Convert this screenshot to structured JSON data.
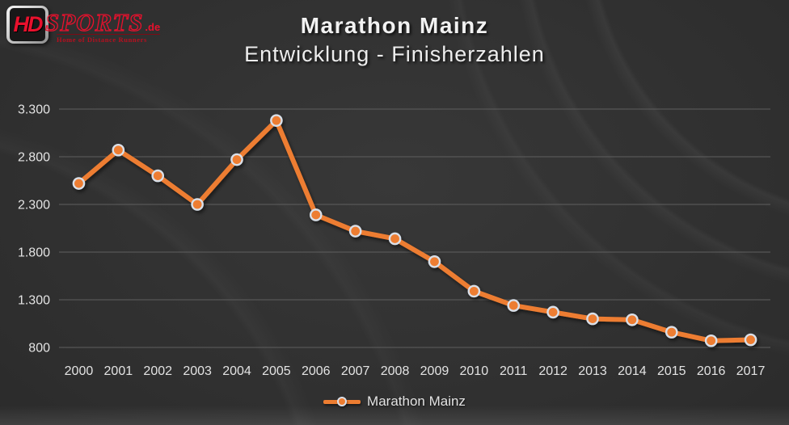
{
  "logo": {
    "hd": "HD",
    "sports": "SPORTS",
    "de": ".de",
    "tagline": "Home of Distance Runners"
  },
  "title": {
    "line1": "Marathon Mainz",
    "line2": "Entwicklung - Finisherzahlen"
  },
  "legend": {
    "label": "Marathon Mainz"
  },
  "colors": {
    "accent": "#ED7D31",
    "marker_ring": "#D9DFE8",
    "grid": "#5F5F5F",
    "axis_text": "#E3E3E3",
    "title_text": "#F2F2F2",
    "logo_red": "#E8112D",
    "background": "#2D2D2D"
  },
  "chart_data": {
    "type": "line",
    "title": "Marathon Mainz — Entwicklung - Finisherzahlen",
    "categories": [
      "2000",
      "2001",
      "2002",
      "2003",
      "2004",
      "2005",
      "2006",
      "2007",
      "2008",
      "2009",
      "2010",
      "2011",
      "2012",
      "2013",
      "2014",
      "2015",
      "2016",
      "2017"
    ],
    "series": [
      {
        "name": "Marathon Mainz",
        "values": [
          2520,
          2870,
          2600,
          2300,
          2770,
          3180,
          2190,
          2020,
          1940,
          1700,
          1390,
          1240,
          1170,
          1100,
          1090,
          960,
          870,
          880
        ]
      }
    ],
    "xlabel": "",
    "ylabel": "",
    "ylim": [
      800,
      3300
    ],
    "yticks": [
      800,
      1300,
      1800,
      2300,
      2800,
      3300
    ],
    "ytick_labels": [
      "800",
      "1.300",
      "1.800",
      "2.300",
      "2.800",
      "3.300"
    ],
    "grid": true,
    "legend_position": "bottom"
  }
}
